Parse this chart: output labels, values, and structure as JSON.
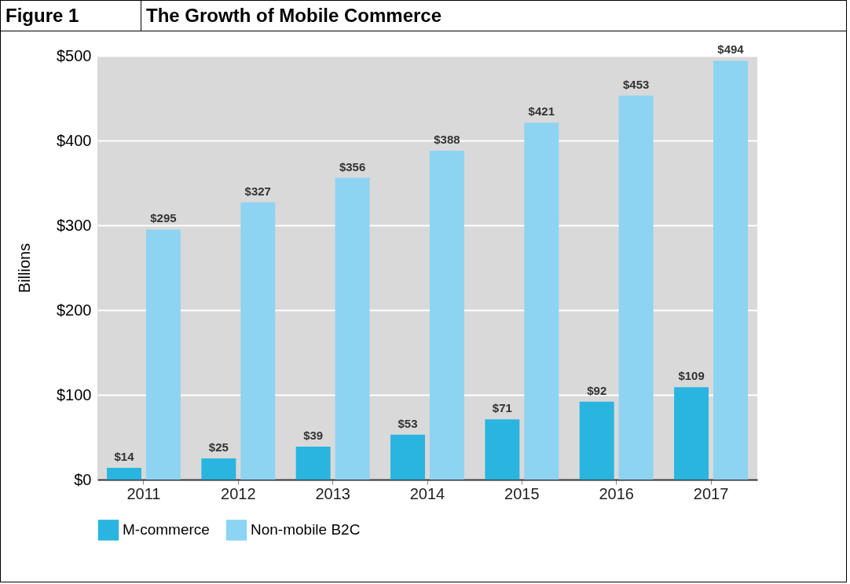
{
  "chart_data": {
    "type": "bar",
    "title": "The Growth of Mobile Commerce",
    "annotations": [
      "Figure 1"
    ],
    "ylabel": "Billions",
    "categories": [
      "2011",
      "2012",
      "2013",
      "2014",
      "2015",
      "2016",
      "2017"
    ],
    "series": [
      {
        "name": "M-commerce",
        "color": "#29b5e0",
        "values": [
          14,
          25,
          39,
          53,
          71,
          92,
          109
        ],
        "value_labels": [
          "$14",
          "$25",
          "$39",
          "$53",
          "$71",
          "$92",
          "$109"
        ]
      },
      {
        "name": "Non-mobile B2C",
        "color": "#8dd3f2",
        "values": [
          295,
          327,
          356,
          388,
          421,
          453,
          494
        ],
        "value_labels": [
          "$295",
          "$327",
          "$356",
          "$388",
          "$421",
          "$453",
          "$494"
        ]
      }
    ],
    "ylim": [
      0,
      500
    ],
    "yticks": [
      {
        "value": 0,
        "label": "$0"
      },
      {
        "value": 100,
        "label": "$100"
      },
      {
        "value": 200,
        "label": "$200"
      },
      {
        "value": 300,
        "label": "$300"
      },
      {
        "value": 400,
        "label": "$400"
      },
      {
        "value": 500,
        "label": "$500"
      }
    ],
    "grid": "y",
    "legend": "bottom"
  }
}
